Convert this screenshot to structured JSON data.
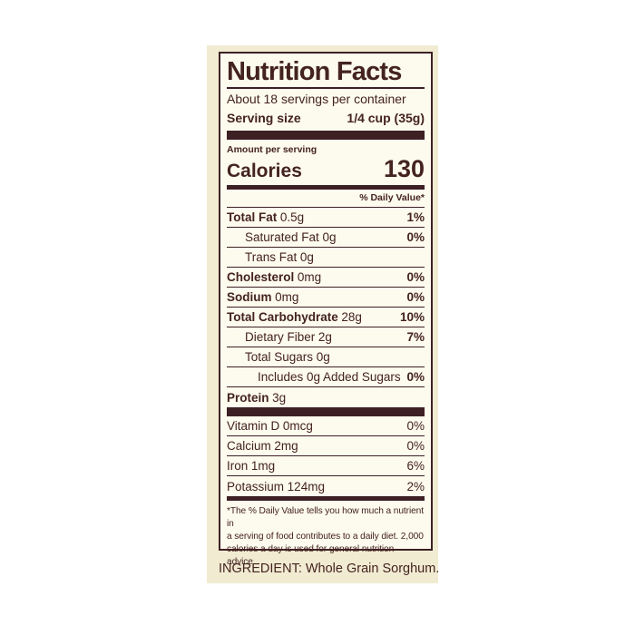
{
  "colors": {
    "page_bg": "#ffffff",
    "card_bg": "#f1ebd2",
    "panel_bg": "#fdfaee",
    "ink": "#44231f",
    "bar": "#3d2024"
  },
  "label": {
    "title": "Nutrition Facts",
    "servings_per_container": "About 18 servings per container",
    "serving_size_label": "Serving size",
    "serving_size_value": "1/4 cup (35g)",
    "amount_per_serving": "Amount per serving",
    "calories_label": "Calories",
    "calories_value": "130",
    "daily_value_header": "% Daily Value*",
    "nutrients": [
      {
        "name": "Total Fat",
        "amount": "0.5g",
        "dv": "1%"
      },
      {
        "name": "Saturated Fat",
        "amount": "0g",
        "dv": "0%"
      },
      {
        "name": "Trans Fat",
        "amount": "0g",
        "dv": ""
      },
      {
        "name": "Cholesterol",
        "amount": "0mg",
        "dv": "0%"
      },
      {
        "name": "Sodium",
        "amount": "0mg",
        "dv": "0%"
      },
      {
        "name": "Total Carbohydrate",
        "amount": "28g",
        "dv": "10%"
      },
      {
        "name": "Dietary Fiber",
        "amount": "2g",
        "dv": "7%"
      },
      {
        "name": "Total Sugars",
        "amount": "0g",
        "dv": ""
      },
      {
        "name": "Includes 0g Added Sugars",
        "amount": "",
        "dv": "0%"
      },
      {
        "name": "Protein",
        "amount": "3g",
        "dv": ""
      }
    ],
    "vitamins": [
      {
        "name": "Vitamin D",
        "amount": "0mcg",
        "dv": "0%"
      },
      {
        "name": "Calcium",
        "amount": "2mg",
        "dv": "0%"
      },
      {
        "name": "Iron",
        "amount": "1mg",
        "dv": "6%"
      },
      {
        "name": "Potassium",
        "amount": "124mg",
        "dv": "2%"
      }
    ],
    "footnote_lines": [
      "*The % Daily Value tells you how much a nutrient in",
      "a serving of food contributes to a daily diet. 2,000",
      "calories a day is used for general nutrition advice."
    ],
    "ingredient": "INGREDIENT: Whole Grain Sorghum."
  }
}
